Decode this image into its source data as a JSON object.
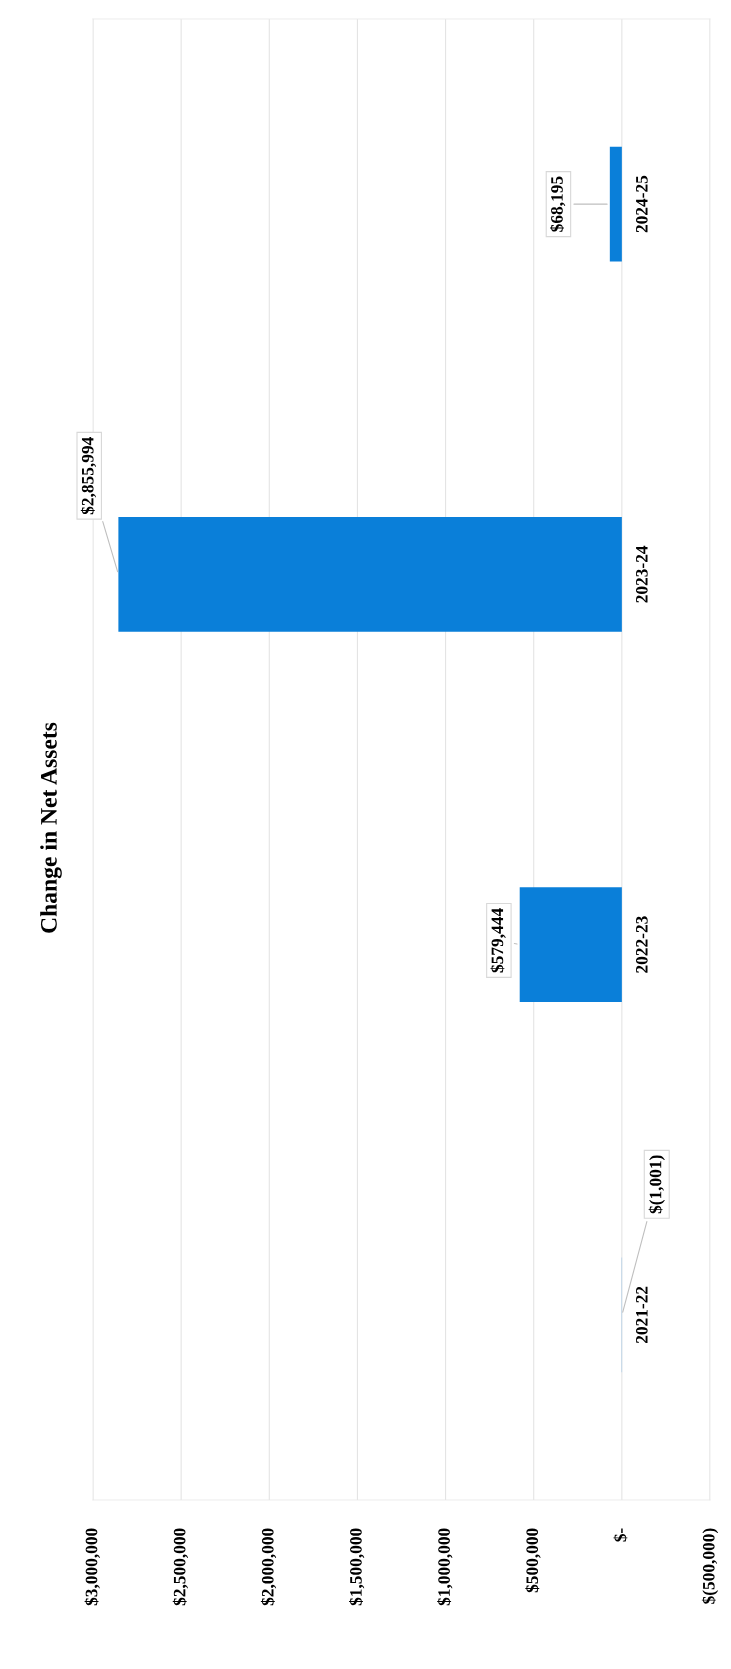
{
  "chart_data": {
    "type": "bar",
    "orientation": "horizontal",
    "title": "Change in Net Assets",
    "categories": [
      "2024-25",
      "2023-24",
      "2022-23",
      "2021-22"
    ],
    "values": [
      68195,
      2855994,
      579444,
      -1001
    ],
    "color": "#0a7fd9",
    "value_labels": [
      "$68,195",
      "$2,855,994",
      "$579,444",
      "$(1,001)"
    ],
    "xlim": [
      3000000,
      -500000
    ],
    "xticks": [
      {
        "value": 3000000,
        "label": "$3,000,000"
      },
      {
        "value": 2500000,
        "label": "$2,500,000"
      },
      {
        "value": 2000000,
        "label": "$2,000,000"
      },
      {
        "value": 1500000,
        "label": "$1,500,000"
      },
      {
        "value": 1000000,
        "label": "$1,000,000"
      },
      {
        "value": 500000,
        "label": "$500,000"
      },
      {
        "value": 0,
        "label": "$-"
      },
      {
        "value": -500000,
        "label": "$(500,000)"
      }
    ],
    "grid": "x"
  }
}
